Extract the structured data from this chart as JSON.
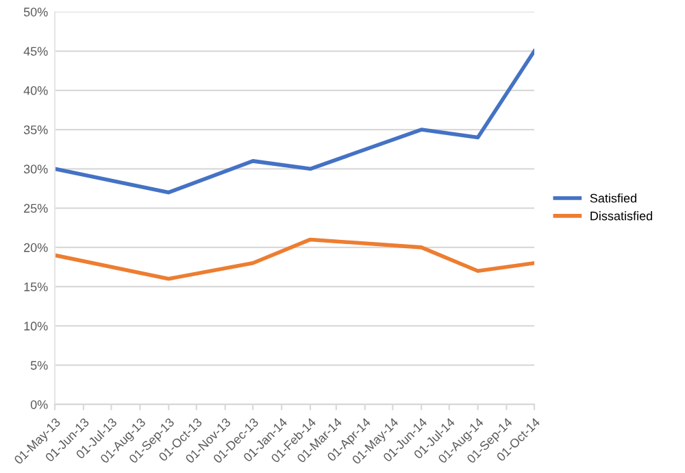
{
  "chart_data": {
    "type": "line",
    "x": [
      "2013-05-01",
      "2013-09-01",
      "2013-12-01",
      "2014-02-01",
      "2014-06-01",
      "2014-08-01",
      "2014-10-01"
    ],
    "series": [
      {
        "name": "Satisfied",
        "color": "#4472c4",
        "values": [
          30,
          27,
          31,
          30,
          35,
          34,
          45
        ]
      },
      {
        "name": "Dissatisfied",
        "color": "#ed7d31",
        "values": [
          19,
          16,
          18,
          21,
          20,
          17,
          18
        ]
      }
    ],
    "xlim": [
      "2013-05-01",
      "2014-10-01"
    ],
    "xticks": [
      {
        "value": "2013-05-01",
        "label": "01-May-13"
      },
      {
        "value": "2013-06-01",
        "label": "01-Jun-13"
      },
      {
        "value": "2013-07-01",
        "label": "01-Jul-13"
      },
      {
        "value": "2013-08-01",
        "label": "01-Aug-13"
      },
      {
        "value": "2013-09-01",
        "label": "01-Sep-13"
      },
      {
        "value": "2013-10-01",
        "label": "01-Oct-13"
      },
      {
        "value": "2013-11-01",
        "label": "01-Nov-13"
      },
      {
        "value": "2013-12-01",
        "label": "01-Dec-13"
      },
      {
        "value": "2014-01-01",
        "label": "01-Jan-14"
      },
      {
        "value": "2014-02-01",
        "label": "01-Feb-14"
      },
      {
        "value": "2014-03-01",
        "label": "01-Mar-14"
      },
      {
        "value": "2014-04-01",
        "label": "01-Apr-14"
      },
      {
        "value": "2014-05-01",
        "label": "01-May-14"
      },
      {
        "value": "2014-06-01",
        "label": "01-Jun-14"
      },
      {
        "value": "2014-07-01",
        "label": "01-Jul-14"
      },
      {
        "value": "2014-08-01",
        "label": "01-Aug-14"
      },
      {
        "value": "2014-09-01",
        "label": "01-Sep-14"
      },
      {
        "value": "2014-10-01",
        "label": "01-Oct-14"
      }
    ],
    "ylim": [
      0,
      50
    ],
    "yticks": [
      {
        "value": 0,
        "label": "0%"
      },
      {
        "value": 5,
        "label": "5%"
      },
      {
        "value": 10,
        "label": "10%"
      },
      {
        "value": 15,
        "label": "15%"
      },
      {
        "value": 20,
        "label": "20%"
      },
      {
        "value": 25,
        "label": "25%"
      },
      {
        "value": 30,
        "label": "30%"
      },
      {
        "value": 35,
        "label": "35%"
      },
      {
        "value": 40,
        "label": "40%"
      },
      {
        "value": 45,
        "label": "45%"
      },
      {
        "value": 50,
        "label": "50%"
      }
    ],
    "grid": "y",
    "legend": "right",
    "marker": "none",
    "line_style": "solid"
  }
}
